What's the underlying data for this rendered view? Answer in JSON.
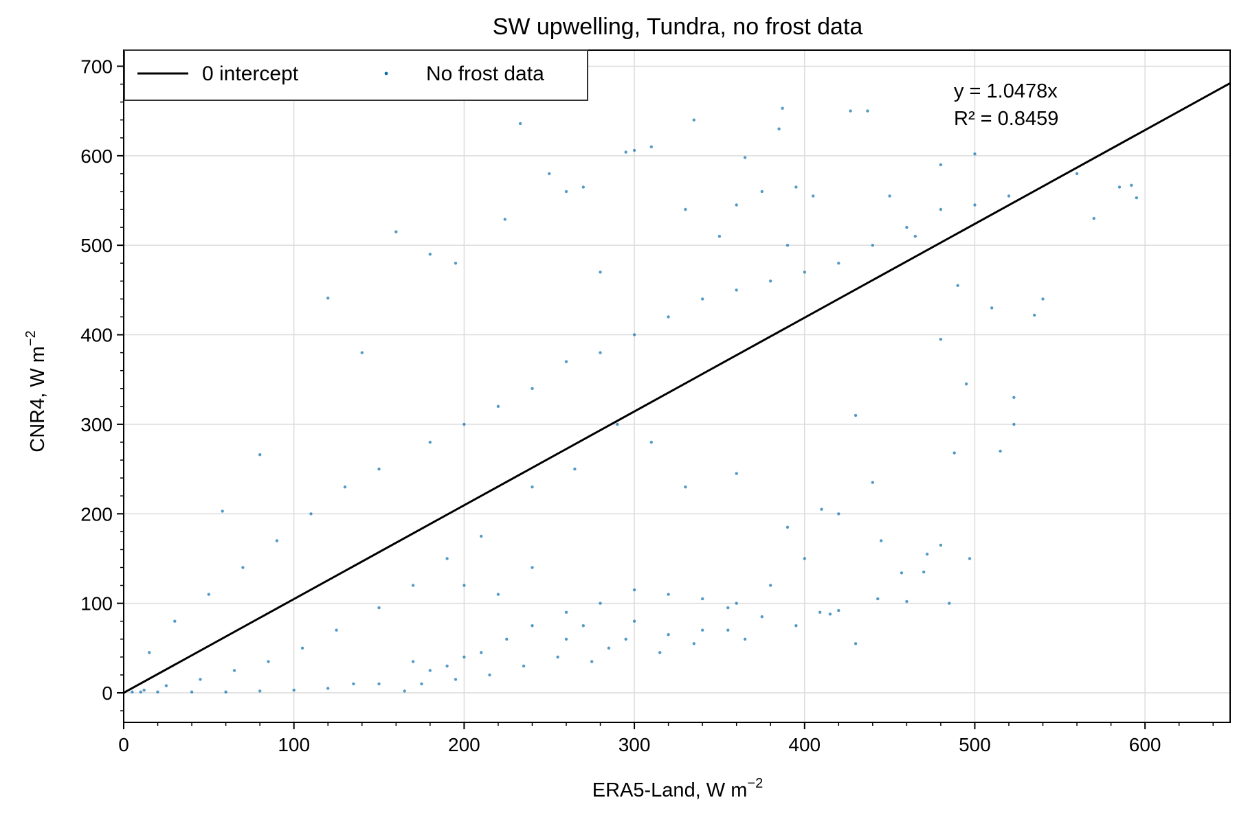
{
  "chart_data": {
    "type": "scatter",
    "title": "SW upwelling, Tundra, no frost data",
    "xlabel_main": "ERA5-Land, W m",
    "xlabel_sup": "−2",
    "ylabel_main": "CNR4, W m",
    "ylabel_sup": "−2",
    "xlim": [
      0,
      650
    ],
    "ylim": [
      -33,
      718
    ],
    "xticks": [
      0,
      100,
      200,
      300,
      400,
      500,
      600
    ],
    "yticks": [
      0,
      100,
      200,
      300,
      400,
      500,
      600,
      700
    ],
    "grid": true,
    "legend_position": "top-left",
    "legend": [
      "0 intercept",
      "No frost data"
    ],
    "fit_line": {
      "name": "0 intercept",
      "slope": 1.0478,
      "intercept": 0,
      "color": "#000000"
    },
    "annotation": {
      "line1": "y = 1.0478x",
      "line2": "R² = 0.8459"
    },
    "series": [
      {
        "name": "No frost data",
        "color": "#0a6fae",
        "points": [
          [
            233,
            636
          ],
          [
            160,
            515
          ],
          [
            120,
            441
          ],
          [
            224,
            529
          ],
          [
            387,
            653
          ],
          [
            427,
            650
          ],
          [
            437,
            650
          ],
          [
            335,
            640
          ],
          [
            295,
            604
          ],
          [
            300,
            606
          ],
          [
            310,
            610
          ],
          [
            365,
            598
          ],
          [
            385,
            630
          ],
          [
            395,
            565
          ],
          [
            480,
            590
          ],
          [
            500,
            602
          ],
          [
            560,
            580
          ],
          [
            585,
            565
          ],
          [
            592,
            567
          ],
          [
            595,
            553
          ],
          [
            570,
            530
          ],
          [
            535,
            422
          ],
          [
            523,
            330
          ],
          [
            523,
            300
          ],
          [
            515,
            270
          ],
          [
            495,
            345
          ],
          [
            497,
            150
          ],
          [
            480,
            165
          ],
          [
            488,
            268
          ],
          [
            485,
            100
          ],
          [
            472,
            155
          ],
          [
            460,
            102
          ],
          [
            457,
            134
          ],
          [
            443,
            105
          ],
          [
            430,
            55
          ],
          [
            420,
            92
          ],
          [
            415,
            88
          ],
          [
            409,
            90
          ],
          [
            400,
            150
          ],
          [
            395,
            75
          ],
          [
            380,
            120
          ],
          [
            365,
            60
          ],
          [
            355,
            95
          ],
          [
            340,
            70
          ],
          [
            320,
            65
          ],
          [
            300,
            80
          ],
          [
            285,
            50
          ],
          [
            270,
            75
          ],
          [
            260,
            60
          ],
          [
            240,
            75
          ],
          [
            225,
            60
          ],
          [
            210,
            45
          ],
          [
            200,
            40
          ],
          [
            190,
            30
          ],
          [
            180,
            25
          ],
          [
            170,
            35
          ],
          [
            165,
            2
          ],
          [
            150,
            10
          ],
          [
            135,
            10
          ],
          [
            120,
            5
          ],
          [
            100,
            3
          ],
          [
            80,
            2
          ],
          [
            60,
            1
          ],
          [
            40,
            1
          ],
          [
            20,
            1
          ],
          [
            10,
            1
          ],
          [
            5,
            1
          ],
          [
            300,
            400
          ],
          [
            320,
            420
          ],
          [
            340,
            440
          ],
          [
            360,
            450
          ],
          [
            380,
            460
          ],
          [
            400,
            470
          ],
          [
            420,
            480
          ],
          [
            440,
            500
          ],
          [
            460,
            520
          ],
          [
            480,
            540
          ],
          [
            500,
            545
          ],
          [
            520,
            555
          ],
          [
            180,
            280
          ],
          [
            200,
            300
          ],
          [
            220,
            320
          ],
          [
            240,
            340
          ],
          [
            260,
            370
          ],
          [
            280,
            380
          ],
          [
            150,
            250
          ],
          [
            130,
            230
          ],
          [
            110,
            200
          ],
          [
            90,
            170
          ],
          [
            70,
            140
          ],
          [
            50,
            110
          ],
          [
            30,
            80
          ],
          [
            15,
            45
          ],
          [
            58,
            203
          ],
          [
            80,
            266
          ],
          [
            140,
            380
          ],
          [
            180,
            490
          ],
          [
            195,
            480
          ],
          [
            250,
            580
          ],
          [
            260,
            560
          ],
          [
            270,
            565
          ],
          [
            280,
            470
          ],
          [
            330,
            540
          ],
          [
            350,
            510
          ],
          [
            360,
            545
          ],
          [
            375,
            560
          ],
          [
            390,
            500
          ],
          [
            405,
            555
          ],
          [
            450,
            555
          ],
          [
            465,
            510
          ],
          [
            490,
            455
          ],
          [
            510,
            430
          ],
          [
            540,
            440
          ],
          [
            480,
            395
          ],
          [
            430,
            310
          ],
          [
            410,
            205
          ],
          [
            420,
            200
          ],
          [
            440,
            235
          ],
          [
            470,
            135
          ],
          [
            445,
            170
          ],
          [
            390,
            185
          ],
          [
            360,
            245
          ],
          [
            330,
            230
          ],
          [
            310,
            280
          ],
          [
            290,
            300
          ],
          [
            265,
            250
          ],
          [
            240,
            230
          ],
          [
            210,
            175
          ],
          [
            190,
            150
          ],
          [
            170,
            120
          ],
          [
            150,
            95
          ],
          [
            125,
            70
          ],
          [
            105,
            50
          ],
          [
            85,
            35
          ],
          [
            65,
            25
          ],
          [
            45,
            15
          ],
          [
            25,
            8
          ],
          [
            12,
            3
          ],
          [
            200,
            120
          ],
          [
            220,
            110
          ],
          [
            240,
            140
          ],
          [
            260,
            90
          ],
          [
            280,
            100
          ],
          [
            300,
            115
          ],
          [
            320,
            110
          ],
          [
            340,
            105
          ],
          [
            360,
            100
          ],
          [
            375,
            85
          ],
          [
            355,
            70
          ],
          [
            335,
            55
          ],
          [
            315,
            45
          ],
          [
            295,
            60
          ],
          [
            275,
            35
          ],
          [
            255,
            40
          ],
          [
            235,
            30
          ],
          [
            215,
            20
          ],
          [
            195,
            15
          ],
          [
            175,
            10
          ]
        ]
      }
    ]
  }
}
